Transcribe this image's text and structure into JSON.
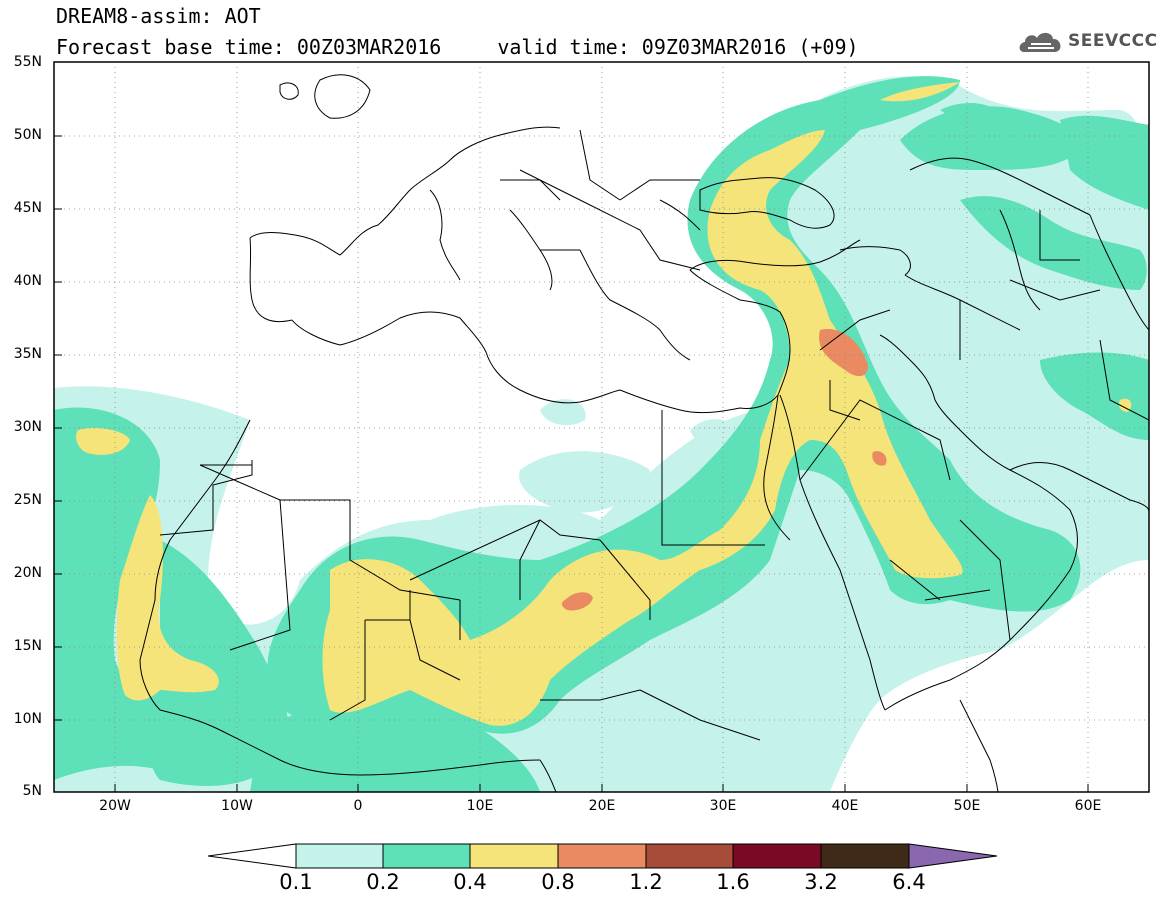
{
  "header": {
    "title_line1": "DREAM8-assim: AOT",
    "base_time": "Forecast base time: 00Z03MAR2016",
    "valid_time": "valid time: 09Z03MAR2016 (+09)",
    "logo_text": "SEEVCCC",
    "logo_icon": "cloud-icon"
  },
  "map": {
    "lat_labels": [
      "55N",
      "50N",
      "45N",
      "40N",
      "35N",
      "30N",
      "25N",
      "20N",
      "15N",
      "10N",
      "5N"
    ],
    "lon_labels": [
      "20W",
      "10W",
      "0",
      "10E",
      "20E",
      "30E",
      "40E",
      "50E",
      "60E"
    ],
    "extent": {
      "lon_min": -25,
      "lon_max": 65,
      "lat_min": 5,
      "lat_max": 55
    },
    "grid": "dotted"
  },
  "legend": {
    "labels": [
      "0.1",
      "0.2",
      "0.4",
      "0.8",
      "1.2",
      "1.6",
      "3.2",
      "6.4"
    ],
    "colors": [
      "#ffffff",
      "#c6f2ec",
      "#5ee0b8",
      "#f5e47a",
      "#e98a62",
      "#a84c3a",
      "#7a0a23",
      "#3e2a17",
      "#8a67ae"
    ]
  }
}
